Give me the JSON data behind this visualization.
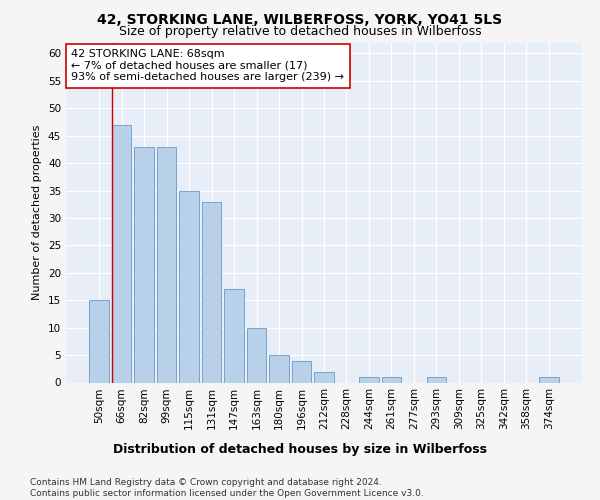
{
  "title": "42, STORKING LANE, WILBERFOSS, YORK, YO41 5LS",
  "subtitle": "Size of property relative to detached houses in Wilberfoss",
  "xlabel": "Distribution of detached houses by size in Wilberfoss",
  "ylabel": "Number of detached properties",
  "bar_labels": [
    "50sqm",
    "66sqm",
    "82sqm",
    "99sqm",
    "115sqm",
    "131sqm",
    "147sqm",
    "163sqm",
    "180sqm",
    "196sqm",
    "212sqm",
    "228sqm",
    "244sqm",
    "261sqm",
    "277sqm",
    "293sqm",
    "309sqm",
    "325sqm",
    "342sqm",
    "358sqm",
    "374sqm"
  ],
  "bar_values": [
    15,
    47,
    43,
    43,
    35,
    33,
    17,
    10,
    5,
    4,
    2,
    0,
    1,
    1,
    0,
    1,
    0,
    0,
    0,
    0,
    1
  ],
  "bar_color": "#b8d0e8",
  "bar_edge_color": "#6699cc",
  "highlight_line_color": "#cc0000",
  "annotation_text": "42 STORKING LANE: 68sqm\n← 7% of detached houses are smaller (17)\n93% of semi-detached houses are larger (239) →",
  "annotation_box_facecolor": "#ffffff",
  "annotation_box_edgecolor": "#cc0000",
  "ylim": [
    0,
    62
  ],
  "yticks": [
    0,
    5,
    10,
    15,
    20,
    25,
    30,
    35,
    40,
    45,
    50,
    55,
    60
  ],
  "bg_color": "#e8eef8",
  "grid_color": "#ffffff",
  "fig_bg_color": "#f5f5f5",
  "title_fontsize": 10,
  "subtitle_fontsize": 9,
  "xlabel_fontsize": 9,
  "ylabel_fontsize": 8,
  "tick_fontsize": 7.5,
  "annotation_fontsize": 8,
  "footer_fontsize": 6.5,
  "footer_text": "Contains HM Land Registry data © Crown copyright and database right 2024.\nContains public sector information licensed under the Open Government Licence v3.0."
}
